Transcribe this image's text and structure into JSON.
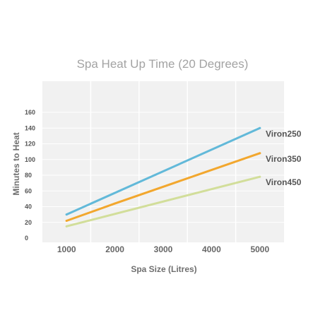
{
  "chart_data": {
    "type": "line",
    "title": "Spa Heat Up Time (20 Degrees)",
    "xlabel": "Spa Size (Litres)",
    "ylabel": "Minutes to Heat",
    "x": [
      1000,
      5000
    ],
    "x_ticks": [
      "1000",
      "2000",
      "3000",
      "4000",
      "5000"
    ],
    "y_ticks": [
      "0",
      "20",
      "40",
      "60",
      "80",
      "100",
      "120",
      "140",
      "160"
    ],
    "xlim": [
      500,
      5500
    ],
    "ylim": [
      0,
      160
    ],
    "grid": true,
    "legend_placement": "right, at line ends",
    "series": [
      {
        "name": "Viron250",
        "x": [
          1000,
          5000
        ],
        "values": [
          30,
          140
        ],
        "color": "#62b9d9"
      },
      {
        "name": "Viron350",
        "x": [
          1000,
          2000,
          5000
        ],
        "values": [
          22,
          44,
          108
        ],
        "color": "#f2a72e"
      },
      {
        "name": "Viron450",
        "x": [
          1000,
          5000
        ],
        "values": [
          15,
          78
        ],
        "color": "#d2de9a"
      }
    ],
    "colors": {
      "plot_background": "#f1f1f1",
      "grid": "#ffffff"
    }
  }
}
